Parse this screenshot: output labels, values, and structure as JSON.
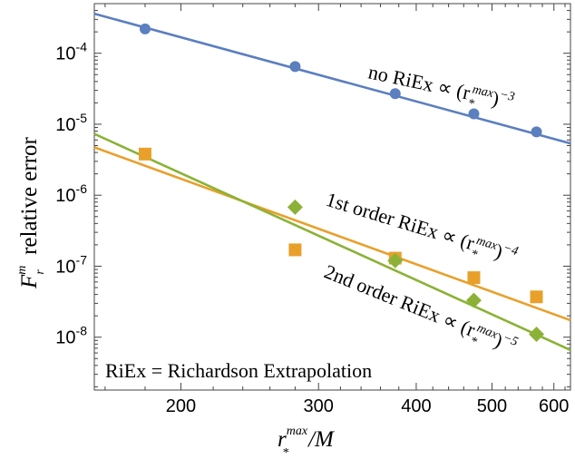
{
  "chart_data": {
    "type": "scatter",
    "scale": {
      "x": "log",
      "y": "log"
    },
    "xlim": [
      155,
      630
    ],
    "ylim": [
      1.8e-09,
      0.0005
    ],
    "x_ticks": [
      200,
      300,
      400,
      500,
      600
    ],
    "y_ticks": [
      1e-08,
      1e-07,
      1e-06,
      1e-05,
      0.0001
    ],
    "x_tick_labels": [
      "200",
      "300",
      "400",
      "500",
      "600"
    ],
    "y_tick_labels": [
      {
        "base": "10",
        "exp": "-8"
      },
      {
        "base": "10",
        "exp": "-7"
      },
      {
        "base": "10",
        "exp": "-6"
      },
      {
        "base": "10",
        "exp": "-5"
      },
      {
        "base": "10",
        "exp": "-4"
      }
    ],
    "xlabel": {
      "main": "r",
      "sub": "*",
      "sup": "max",
      "rest": "/M"
    },
    "ylabel": {
      "main": "F",
      "sub": "r",
      "sup": "m",
      "rest": "relative  error"
    },
    "grid": false,
    "series": [
      {
        "marker": "circle",
        "color": "#5b7fbf",
        "x": [
          180,
          280,
          376,
          474,
          570
        ],
        "y": [
          0.00022,
          6.5e-05,
          2.7e-05,
          1.4e-05,
          7.8e-06
        ],
        "fit": {
          "slope": -3,
          "ref_x": 180,
          "ref_y": 0.00023
        }
      },
      {
        "marker": "square",
        "color": "#e8a02b",
        "x": [
          180,
          280,
          376,
          474,
          570
        ],
        "y": [
          3.8e-06,
          1.7e-07,
          1.3e-07,
          6.9e-08,
          3.7e-08
        ],
        "fit": {
          "slope": -4,
          "ref_x": 180,
          "ref_y": 2.6e-06
        }
      },
      {
        "marker": "diamond",
        "color": "#8bb236",
        "x": [
          280,
          376,
          474,
          570
        ],
        "y": [
          6.8e-07,
          1.2e-07,
          3.3e-08,
          1.1e-08
        ],
        "fit": {
          "slope": -5,
          "ref_x": 280,
          "ref_y": 3.8e-07
        }
      }
    ],
    "annotations": [
      {
        "prefix": "no RiEx ∝ (r",
        "sub": "*",
        "sup": "max",
        "close": ")",
        "power": "−3"
      },
      {
        "prefix": "1st order RiEx ∝ (r",
        "sub": "*",
        "sup": "max",
        "close": ")",
        "power": "−4"
      },
      {
        "prefix": "2nd order RiEx ∝ (r",
        "sub": "*",
        "sup": "max",
        "close": ")",
        "power": "−5"
      }
    ],
    "footnote": "RiEx = Richardson Extrapolation"
  }
}
